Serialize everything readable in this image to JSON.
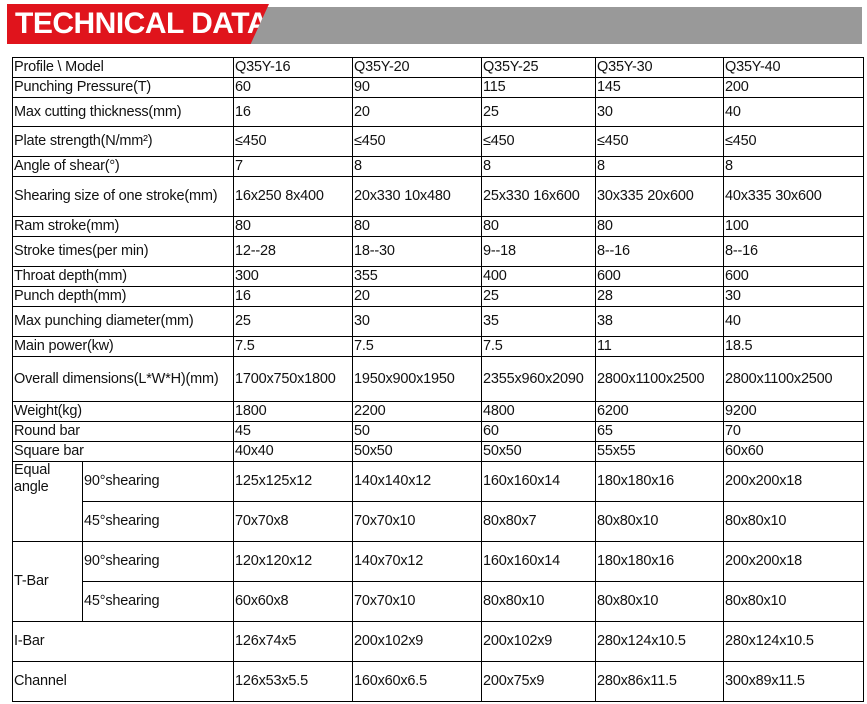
{
  "title": "TECHNICAL DATA",
  "header": [
    "Profile \\ Model",
    "Q35Y-16",
    "Q35Y-20",
    "Q35Y-25",
    "Q35Y-30",
    "Q35Y-40"
  ],
  "rows": [
    {
      "label": "Punching Pressure(T)",
      "values": [
        "60",
        "90",
        "115",
        "145",
        "200"
      ]
    },
    {
      "label": "Max cutting thickness(mm)",
      "values": [
        "16",
        "20",
        "25",
        "30",
        "40"
      ]
    },
    {
      "label": "Plate strength(N/mm²)",
      "values": [
        "≤450",
        "≤450",
        "≤450",
        "≤450",
        "≤450"
      ]
    },
    {
      "label": "Angle of shear(°)",
      "values": [
        "7",
        "8",
        "8",
        "8",
        "8"
      ]
    },
    {
      "label": "Shearing size of one stroke(mm)",
      "values": [
        "16x250 8x400",
        "20x330 10x480",
        "25x330 16x600",
        "30x335 20x600",
        "40x335 30x600"
      ]
    },
    {
      "label": "Ram stroke(mm)",
      "values": [
        "80",
        "80",
        "80",
        "80",
        "100"
      ]
    },
    {
      "label": "Stroke times(per  min)",
      "values": [
        "12--28",
        "18--30",
        "9--18",
        "8--16",
        "8--16"
      ]
    },
    {
      "label": "Throat depth(mm)",
      "values": [
        "300",
        "355",
        "400",
        "600",
        "600"
      ]
    },
    {
      "label": "Punch depth(mm)",
      "values": [
        "16",
        "20",
        "25",
        "28",
        "30"
      ]
    },
    {
      "label": "Max punching diameter(mm)",
      "values": [
        "25",
        "30",
        "35",
        "38",
        "40"
      ]
    },
    {
      "label": "Main power(kw)",
      "values": [
        "7.5",
        "7.5",
        "7.5",
        "11",
        "18.5"
      ]
    },
    {
      "label": "Overall dimensions(L*W*H)(mm)",
      "values": [
        "1700x750x1800",
        "1950x900x1950",
        "2355x960x2090",
        "2800x1100x2500",
        "2800x1100x2500"
      ]
    },
    {
      "label": "Weight(kg)",
      "values": [
        "1800",
        "2200",
        "4800",
        "6200",
        "9200"
      ]
    },
    {
      "label": "Round bar",
      "values": [
        "45",
        "50",
        "60",
        "65",
        "70"
      ]
    },
    {
      "label": "Square bar",
      "values": [
        "40x40",
        "50x50",
        "50x50",
        "55x55",
        "60x60"
      ]
    }
  ],
  "groups": [
    {
      "label": "Equal angle",
      "sub": [
        {
          "label": "90°shearing",
          "values": [
            "125x125x12",
            "140x140x12",
            "160x160x14",
            "180x180x16",
            "200x200x18"
          ]
        },
        {
          "label": "45°shearing",
          "values": [
            "70x70x8",
            "70x70x10",
            "80x80x7",
            "80x80x10",
            "80x80x10"
          ]
        }
      ]
    },
    {
      "label": "T-Bar",
      "sub": [
        {
          "label": "90°shearing",
          "values": [
            "120x120x12",
            "140x70x12",
            "160x160x14",
            "180x180x16",
            "200x200x18"
          ]
        },
        {
          "label": "45°shearing",
          "values": [
            "60x60x8",
            "70x70x10",
            "80x80x10",
            "80x80x10",
            "80x80x10"
          ]
        }
      ]
    }
  ],
  "tail": [
    {
      "label": "I-Bar",
      "values": [
        "126x74x5",
        "200x102x9",
        "200x102x9",
        "280x124x10.5",
        "280x124x10.5"
      ]
    },
    {
      "label": "Channel",
      "values": [
        "126x53x5.5",
        "160x60x6.5",
        "200x75x9",
        "280x86x11.5",
        "300x89x11.5"
      ]
    }
  ],
  "colors": {
    "banner_red": "#e0141c",
    "banner_gray": "#999999"
  }
}
